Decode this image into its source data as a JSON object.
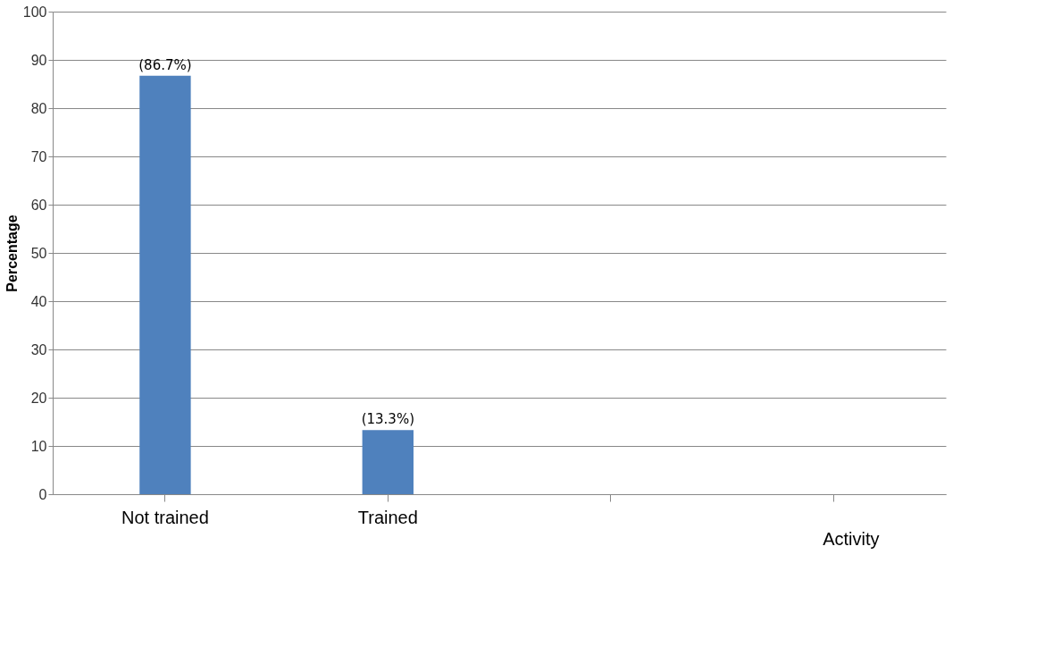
{
  "chart_data": {
    "type": "bar",
    "xlabel": "Activity",
    "ylabel": "Percentage",
    "categories": [
      "Not trained",
      "Trained",
      null,
      null
    ],
    "values": [
      86.7,
      13.3,
      null,
      null
    ],
    "value_labels": [
      "(86.7%)",
      "(13.3%)",
      null,
      null
    ],
    "color": "#4f81bd",
    "ylim": [
      0,
      100
    ],
    "yticks": [
      0,
      10,
      20,
      30,
      40,
      50,
      60,
      70,
      80,
      90,
      100
    ],
    "grid": "y"
  }
}
